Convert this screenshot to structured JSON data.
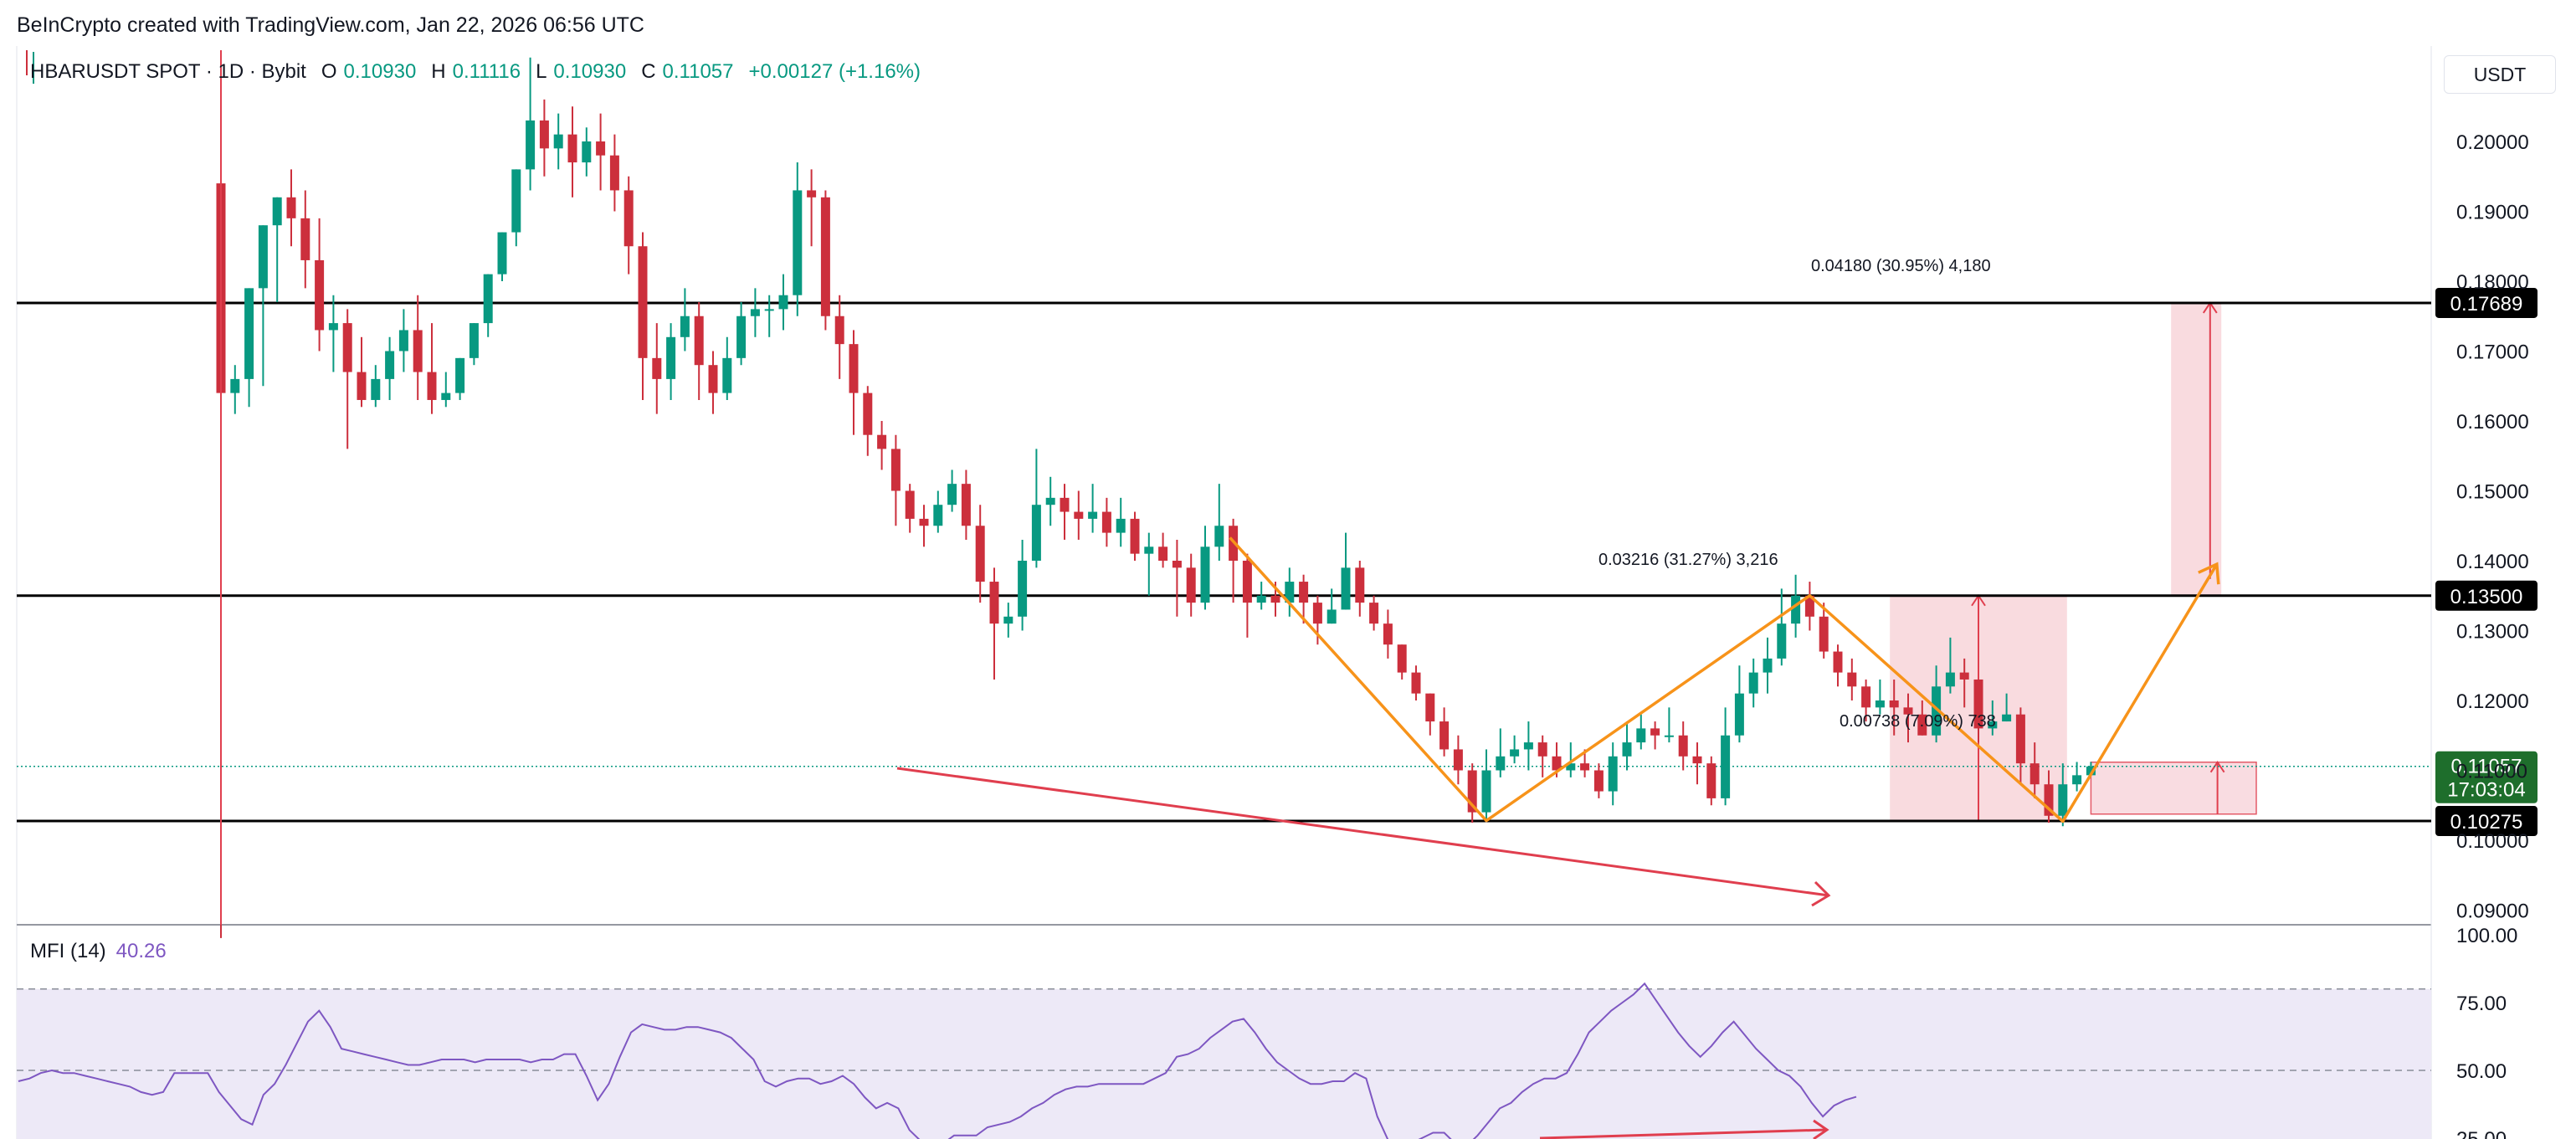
{
  "header": {
    "title": "BeInCrypto created with TradingView.com, Jan 22, 2026 06:56 UTC"
  },
  "legend": {
    "symbol": "HBARUSDT SPOT · 1D · Bybit",
    "o_label": "O",
    "o_value": "0.10930",
    "h_label": "H",
    "h_value": "0.11116",
    "l_label": "L",
    "l_value": "0.10930",
    "c_label": "C",
    "c_value": "0.11057",
    "change": "+0.00127 (+1.16%)"
  },
  "currency_button": "USDT",
  "colors": {
    "up": "#089981",
    "down": "#cc2f3c",
    "orange": "#f7931a",
    "red_arrow": "#e03e4e",
    "zone_fill": "#f8d7dc",
    "mfi_line": "#7e57c2",
    "mfi_band": "#ede9f7",
    "line": "#000000"
  },
  "chart_data": [
    {
      "type": "candlestick",
      "title": "HBARUSDT SPOT · 1D · Bybit",
      "ylim": [
        0.086,
        0.212
      ],
      "yticks": [
        "0.20000",
        "0.19000",
        "0.18000",
        "0.17000",
        "0.16000",
        "0.15000",
        "0.14000",
        "0.13000",
        "0.12000",
        "0.11000",
        "0.10000",
        "0.09000"
      ],
      "first_candle_o": 0.194,
      "closes": [
        0.164,
        0.166,
        0.179,
        0.188,
        0.192,
        0.189,
        0.183,
        0.173,
        0.174,
        0.167,
        0.163,
        0.166,
        0.17,
        0.173,
        0.167,
        0.163,
        0.164,
        0.169,
        0.174,
        0.181,
        0.187,
        0.196,
        0.203,
        0.199,
        0.201,
        0.197,
        0.2,
        0.198,
        0.193,
        0.185,
        0.169,
        0.166,
        0.172,
        0.175,
        0.168,
        0.164,
        0.169,
        0.175,
        0.176,
        0.176,
        0.178,
        0.193,
        0.192,
        0.175,
        0.171,
        0.164,
        0.158,
        0.156,
        0.15,
        0.146,
        0.145,
        0.148,
        0.151,
        0.145,
        0.137,
        0.131,
        0.132,
        0.14,
        0.148,
        0.149,
        0.147,
        0.146,
        0.147,
        0.144,
        0.146,
        0.141,
        0.142,
        0.14,
        0.139,
        0.134,
        0.142,
        0.145,
        0.14,
        0.134,
        0.135,
        0.134,
        0.137,
        0.134,
        0.131,
        0.133,
        0.139,
        0.134,
        0.131,
        0.128,
        0.124,
        0.121,
        0.117,
        0.113,
        0.11,
        0.104,
        0.11,
        0.112,
        0.113,
        0.114,
        0.112,
        0.11,
        0.111,
        0.11,
        0.107,
        0.112,
        0.114,
        0.116,
        0.115,
        0.115,
        0.112,
        0.111,
        0.106,
        0.115,
        0.121,
        0.124,
        0.126,
        0.131,
        0.135,
        0.132,
        0.127,
        0.124,
        0.122,
        0.119,
        0.12,
        0.119,
        0.118,
        0.115,
        0.122,
        0.124,
        0.123,
        0.116,
        0.117,
        0.118,
        0.111,
        0.108,
        0.1035,
        0.108,
        0.1093,
        0.11057
      ],
      "highs": [
        0.21,
        0.168,
        0.17,
        0.184,
        0.19,
        0.196,
        0.193,
        0.189,
        0.178,
        0.176,
        0.172,
        0.168,
        0.172,
        0.176,
        0.178,
        0.174,
        0.167,
        0.167,
        0.172,
        0.178,
        0.183,
        0.19,
        0.212,
        0.206,
        0.204,
        0.205,
        0.202,
        0.204,
        0.201,
        0.195,
        0.187,
        0.174,
        0.174,
        0.179,
        0.177,
        0.17,
        0.172,
        0.177,
        0.179,
        0.178,
        0.181,
        0.197,
        0.196,
        0.193,
        0.178,
        0.173,
        0.165,
        0.16,
        0.158,
        0.151,
        0.148,
        0.15,
        0.153,
        0.153,
        0.148,
        0.139,
        0.134,
        0.143,
        0.156,
        0.152,
        0.151,
        0.15,
        0.151,
        0.149,
        0.149,
        0.147,
        0.144,
        0.144,
        0.143,
        0.141,
        0.145,
        0.151,
        0.146,
        0.141,
        0.137,
        0.137,
        0.139,
        0.138,
        0.135,
        0.136,
        0.144,
        0.14,
        0.135,
        0.133,
        0.127,
        0.125,
        0.121,
        0.119,
        0.115,
        0.111,
        0.113,
        0.116,
        0.115,
        0.117,
        0.115,
        0.114,
        0.114,
        0.113,
        0.111,
        0.114,
        0.117,
        0.118,
        0.117,
        0.119,
        0.117,
        0.114,
        0.112,
        0.119,
        0.125,
        0.126,
        0.129,
        0.136,
        0.138,
        0.137,
        0.134,
        0.128,
        0.126,
        0.123,
        0.123,
        0.123,
        0.121,
        0.12,
        0.125,
        0.129,
        0.126,
        0.123,
        0.12,
        0.121,
        0.119,
        0.114,
        0.11,
        0.111,
        0.1112,
        0.1112
      ],
      "lows": [
        0.086,
        0.161,
        0.162,
        0.165,
        0.177,
        0.185,
        0.179,
        0.17,
        0.167,
        0.156,
        0.162,
        0.162,
        0.163,
        0.167,
        0.163,
        0.161,
        0.162,
        0.163,
        0.168,
        0.172,
        0.18,
        0.185,
        0.193,
        0.195,
        0.196,
        0.192,
        0.195,
        0.193,
        0.19,
        0.181,
        0.163,
        0.161,
        0.163,
        0.17,
        0.163,
        0.161,
        0.163,
        0.168,
        0.172,
        0.172,
        0.173,
        0.175,
        0.185,
        0.173,
        0.166,
        0.158,
        0.155,
        0.153,
        0.145,
        0.144,
        0.142,
        0.144,
        0.147,
        0.143,
        0.134,
        0.123,
        0.129,
        0.13,
        0.139,
        0.145,
        0.143,
        0.143,
        0.144,
        0.142,
        0.142,
        0.14,
        0.135,
        0.139,
        0.132,
        0.132,
        0.133,
        0.14,
        0.134,
        0.129,
        0.133,
        0.132,
        0.132,
        0.131,
        0.128,
        0.131,
        0.133,
        0.132,
        0.13,
        0.126,
        0.123,
        0.12,
        0.115,
        0.112,
        0.108,
        0.1025,
        0.1027,
        0.109,
        0.111,
        0.11,
        0.109,
        0.109,
        0.109,
        0.109,
        0.106,
        0.105,
        0.11,
        0.113,
        0.113,
        0.114,
        0.11,
        0.108,
        0.105,
        0.105,
        0.114,
        0.119,
        0.121,
        0.125,
        0.129,
        0.13,
        0.126,
        0.122,
        0.12,
        0.117,
        0.118,
        0.115,
        0.114,
        0.115,
        0.114,
        0.121,
        0.119,
        0.114,
        0.115,
        0.117,
        0.108,
        0.106,
        0.1025,
        0.102,
        0.107,
        0.1093
      ],
      "horizontal_levels": [
        {
          "price": 0.17689,
          "label": "0.17689"
        },
        {
          "price": 0.135,
          "label": "0.13500"
        },
        {
          "price": 0.10275,
          "label": "0.10275"
        }
      ],
      "last_price": {
        "label": "0.11057",
        "countdown": "17:03:04"
      },
      "annotations": [
        {
          "text": "0.04180 (30.95%) 4,180"
        },
        {
          "text": "0.03216 (31.27%) 3,216"
        },
        {
          "text": "0.00738 (7.09%) 738"
        }
      ]
    },
    {
      "type": "line",
      "title": "MFI (14)",
      "current_value": "40.26",
      "ylim": [
        21,
        105
      ],
      "yticks": [
        "100.00",
        "75.00",
        "50.00",
        "25.00"
      ],
      "bands": [
        80,
        20
      ],
      "midline": 50,
      "values": [
        46,
        47,
        49,
        50,
        49,
        49,
        48,
        47,
        46,
        45,
        44,
        42,
        41,
        42,
        49,
        49,
        49,
        49,
        42,
        37,
        32,
        30,
        41,
        45,
        52,
        60,
        68,
        72,
        66,
        58,
        57,
        56,
        55,
        54,
        53,
        52,
        52,
        53,
        54,
        54,
        54,
        53,
        54,
        54,
        54,
        54,
        53,
        54,
        54,
        56,
        56,
        48,
        39,
        45,
        55,
        64,
        67,
        66,
        65,
        65,
        66,
        66,
        65,
        64,
        62,
        58,
        54,
        46,
        44,
        46,
        47,
        47,
        45,
        46,
        48,
        45,
        40,
        36,
        38,
        36,
        28,
        24,
        22,
        23,
        26,
        26,
        26,
        29,
        30,
        31,
        33,
        36,
        38,
        41,
        43,
        44,
        44,
        45,
        45,
        45,
        45,
        45,
        47,
        49,
        55,
        56,
        58,
        62,
        65,
        68,
        69,
        64,
        58,
        53,
        50,
        47,
        45,
        45,
        46,
        46,
        49,
        47,
        33,
        24,
        22,
        23,
        25,
        27,
        27,
        23,
        22,
        26,
        31,
        36,
        38,
        42,
        45,
        47,
        47,
        49,
        56,
        64,
        68,
        72,
        75,
        78,
        82,
        76,
        70,
        64,
        59,
        55,
        59,
        64,
        68,
        63,
        58,
        54,
        50,
        48,
        44,
        38,
        33,
        37,
        39,
        40.26
      ]
    }
  ]
}
